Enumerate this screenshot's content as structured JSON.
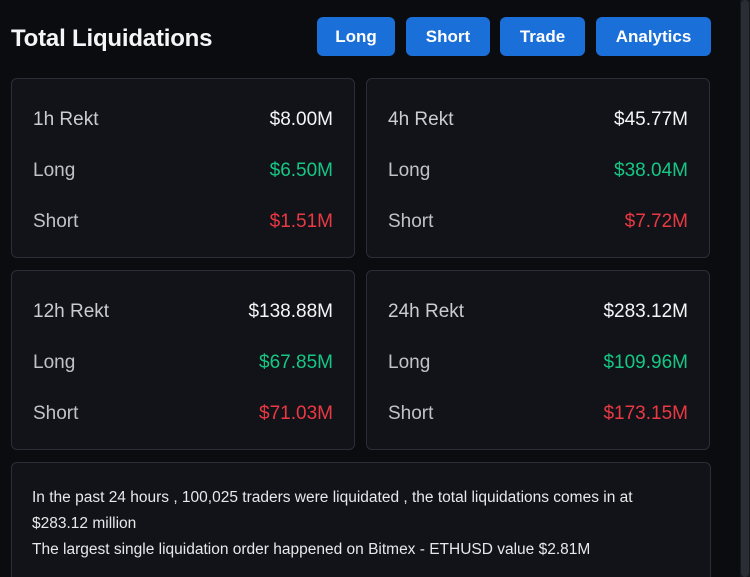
{
  "header": {
    "title": "Total Liquidations",
    "buttons": {
      "long": "Long",
      "short": "Short",
      "trade": "Trade",
      "analytics": "Analytics"
    }
  },
  "cards": {
    "h1": {
      "label": "1h Rekt",
      "total": "$8.00M",
      "long_label": "Long",
      "long": "$6.50M",
      "short_label": "Short",
      "short": "$1.51M"
    },
    "h4": {
      "label": "4h Rekt",
      "total": "$45.77M",
      "long_label": "Long",
      "long": "$38.04M",
      "short_label": "Short",
      "short": "$7.72M"
    },
    "h12": {
      "label": "12h Rekt",
      "total": "$138.88M",
      "long_label": "Long",
      "long": "$67.85M",
      "short_label": "Short",
      "short": "$71.03M"
    },
    "h24": {
      "label": "24h Rekt",
      "total": "$283.12M",
      "long_label": "Long",
      "long": "$109.96M",
      "short_label": "Short",
      "short": "$173.15M"
    }
  },
  "summary": {
    "line1": "In the past 24 hours , 100,025 traders were liquidated , the total liquidations comes in at $283.12 million",
    "line2": "The largest single liquidation order happened on Bitmex - ETHUSD value $2.81M"
  },
  "colors": {
    "accent_button": "#1b6fd8",
    "long_green": "#16c784",
    "short_red": "#ea3943",
    "background": "#0b0c0f",
    "card_background": "#111318"
  }
}
